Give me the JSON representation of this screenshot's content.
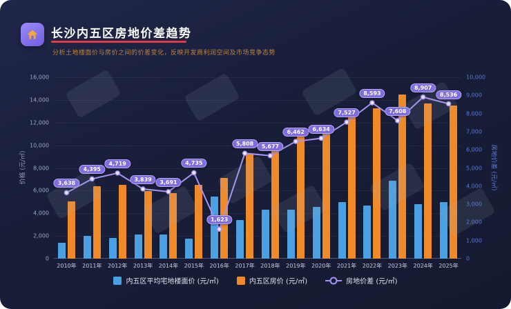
{
  "header": {
    "title": "长沙内五区房地价差趋势",
    "subtitle": "分析土地楼面价与房价之间的价差变化，反映开发商利润空间及市场竞争态势"
  },
  "theme": {
    "panel_bg": "#181e38",
    "accent_red": "#e03a44",
    "land_bar_color": "#4aa0e0",
    "house_bar_color": "#ef8a28",
    "gap_line_color": "#a794f2"
  },
  "chart_data": {
    "type": "bar",
    "categories": [
      "2010年",
      "2011年",
      "2012年",
      "2013年",
      "2014年",
      "2015年",
      "2016年",
      "2017年",
      "2018年",
      "2019年",
      "2020年",
      "2021年",
      "2022年",
      "2023年",
      "2024年",
      "2025年"
    ],
    "series": [
      {
        "name": "内五区平均宅地楼面价 (元/㎡)",
        "type": "bar",
        "axis": "left",
        "color": "#4aa0e0",
        "values": [
          1400,
          2000,
          1800,
          2150,
          2100,
          1750,
          5480,
          3430,
          4330,
          4300,
          4580,
          4990,
          4700,
          6900,
          4800,
          5000
        ]
      },
      {
        "name": "内五区房价 (元/㎡)",
        "type": "bar",
        "axis": "left",
        "color": "#ef8a28",
        "values": [
          5038,
          6395,
          6519,
          5989,
          5791,
          6485,
          7103,
          9238,
          10007,
          10762,
          11214,
          12517,
          13293,
          14508,
          13707,
          13536
        ]
      },
      {
        "name": "房地价差 (元/㎡)",
        "type": "line",
        "axis": "right",
        "color": "#a794f2",
        "values": [
          3638,
          4395,
          4719,
          3839,
          3691,
          4735,
          1623,
          5808,
          5677,
          6462,
          6634,
          7527,
          8593,
          7608,
          8907,
          8536
        ]
      }
    ],
    "left_axis": {
      "label": "价格 (元/㎡)",
      "min": 0,
      "max": 16000,
      "step": 2000
    },
    "right_axis": {
      "label": "房地价差 (元/㎡)",
      "min": 0,
      "max": 10000,
      "step": 1000
    },
    "grid": true,
    "legend_position": "bottom"
  }
}
